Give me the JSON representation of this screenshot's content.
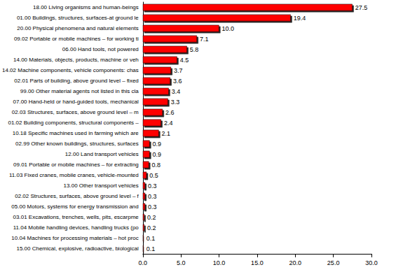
{
  "chart_data": {
    "type": "bar",
    "orientation": "horizontal",
    "categories": [
      "18.00 Living organisms and human-beings",
      "01.00 Buildings, structures, surfaces-at ground le",
      "20.00 Physical phenomena and natural elements",
      "09.02 Portable or mobile machines – for working ti",
      "06.00 Hand tools, not powered",
      "14.00 Materials, objects, products, machine or veh",
      "14.02 Machine components, vehicle components: chas",
      "02.01 Parts of building, above ground level – fixed",
      "99.00 Other material agents not listed in this cla",
      "07.00 Hand-held or hand-guided tools, mechanical",
      "02.03 Structures, surfaces, above ground level – m",
      "01.02 Building components, structural components –",
      "10.18 Specific machines used in farming which are",
      "02.99 Other known buildings, structures, surfaces",
      "12.00 Land transport vehicles",
      "09.01 Portable or mobile machines – for extracting",
      "11.03 Fixed cranes, mobile cranes, vehicle-mounted",
      "13.00 Other transport vehicles",
      "02.02 Structures, surfaces, above ground level – f",
      "05.00 Motors, systems for energy transmission and",
      "03.01 Excavations, trenches, wells, pits, escarpme",
      "11.04 Mobile handling devices, handling trucks (po",
      "10.04 Machines for processing materials – hot proc",
      "15.00 Chemical, explosive, radioactive, biological"
    ],
    "values": [
      27.5,
      19.4,
      10,
      7.1,
      5.8,
      4.5,
      3.7,
      3.6,
      3.4,
      3.3,
      2.6,
      2.4,
      2.1,
      0.9,
      0.9,
      0.8,
      0.5,
      0.3,
      0.3,
      0.3,
      0.2,
      0.2,
      0.1,
      0.1
    ],
    "value_labels": [
      "27.5",
      "19.4",
      "10.0",
      "7.1",
      "5.8",
      "4.5",
      "3.7",
      "3.6",
      "3.4",
      "3.3",
      "2.6",
      "2.4",
      "2.1",
      "0.9",
      "0.9",
      "0.8",
      "0.5",
      "0.3",
      "0.3",
      "0.3",
      "0.2",
      "0.2",
      "0.1",
      "0.1"
    ],
    "color": "#ff0000",
    "data_labels": true,
    "grid": false,
    "xlim": [
      0,
      30
    ],
    "xticks": [
      {
        "value": 0,
        "label": "0.0"
      },
      {
        "value": 5,
        "label": "5.0"
      },
      {
        "value": 10,
        "label": "10.0"
      },
      {
        "value": 15,
        "label": "15.0"
      },
      {
        "value": 20,
        "label": "20.0"
      },
      {
        "value": 25,
        "label": "25.0"
      },
      {
        "value": 30,
        "label": "30.0"
      }
    ]
  }
}
